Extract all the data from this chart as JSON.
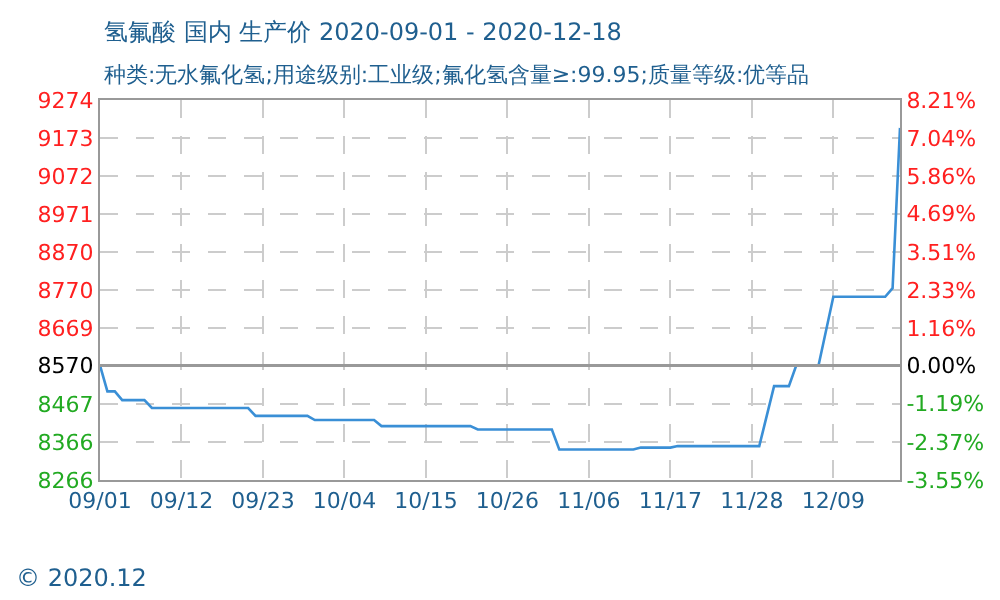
{
  "chart_data": {
    "type": "line",
    "title": "氢氟酸 国内 生产价 2020-09-01 - 2020-12-18",
    "subtitle": "种类:无水氟化氢;用途级别:工业级;氟化氢含量≥:99.95;质量等级:优等品",
    "x": [
      "2020-09-01",
      "2020-09-02",
      "2020-09-03",
      "2020-09-04",
      "2020-09-07",
      "2020-09-08",
      "2020-09-21",
      "2020-09-22",
      "2020-09-29",
      "2020-09-30",
      "2020-10-08",
      "2020-10-09",
      "2020-10-21",
      "2020-10-22",
      "2020-11-01",
      "2020-11-02",
      "2020-11-12",
      "2020-11-13",
      "2020-11-17",
      "2020-11-18",
      "2020-11-29",
      "2020-12-01",
      "2020-12-03",
      "2020-12-04",
      "2020-12-07",
      "2020-12-09",
      "2020-12-16",
      "2020-12-17",
      "2020-12-18"
    ],
    "series": [
      {
        "color": "#3a8fd6",
        "values": [
          8570,
          8501,
          8501,
          8478,
          8478,
          8457,
          8457,
          8436,
          8436,
          8425,
          8425,
          8409,
          8409,
          8400,
          8400,
          8347,
          8347,
          8352,
          8352,
          8356,
          8356,
          8515,
          8515,
          8570,
          8570,
          8752,
          8752,
          8775,
          9200
        ]
      }
    ],
    "xlim": [
      "2020-09-01",
      "2020-12-18"
    ],
    "xticks": [
      {
        "value": "2020-09-01",
        "label": "09/01"
      },
      {
        "value": "2020-09-12",
        "label": "09/12"
      },
      {
        "value": "2020-09-23",
        "label": "09/23"
      },
      {
        "value": "2020-10-04",
        "label": "10/04"
      },
      {
        "value": "2020-10-15",
        "label": "10/15"
      },
      {
        "value": "2020-10-26",
        "label": "10/26"
      },
      {
        "value": "2020-11-06",
        "label": "11/06"
      },
      {
        "value": "2020-11-17",
        "label": "11/17"
      },
      {
        "value": "2020-11-28",
        "label": "11/28"
      },
      {
        "value": "2020-12-09",
        "label": "12/09"
      }
    ],
    "ylim": [
      8266,
      9274
    ],
    "yticks": [
      8266,
      8366,
      8467,
      8570,
      8669,
      8770,
      8870,
      8971,
      9072,
      9173,
      9274
    ],
    "y2lim": [
      -3.55,
      8.21
    ],
    "y2ticks": [
      {
        "value": -3.55,
        "label": "-3.55%"
      },
      {
        "value": -2.37,
        "label": "-2.37%"
      },
      {
        "value": -1.19,
        "label": "-1.19%"
      },
      {
        "value": 0,
        "label": "0.00%"
      },
      {
        "value": 1.16,
        "label": "1.16%"
      },
      {
        "value": 2.33,
        "label": "2.33%"
      },
      {
        "value": 3.51,
        "label": "3.51%"
      },
      {
        "value": 4.69,
        "label": "4.69%"
      },
      {
        "value": 5.86,
        "label": "5.86%"
      },
      {
        "value": 7.04,
        "label": "7.04%"
      },
      {
        "value": 8.21,
        "label": "8.21%"
      }
    ],
    "ref_lines": [
      {
        "axis": "y",
        "value": 8570,
        "color": "#999999"
      }
    ],
    "grid": true,
    "legend": false,
    "marker": "none",
    "line_style": "solid",
    "annotations": [
      "© 2020.12"
    ]
  }
}
